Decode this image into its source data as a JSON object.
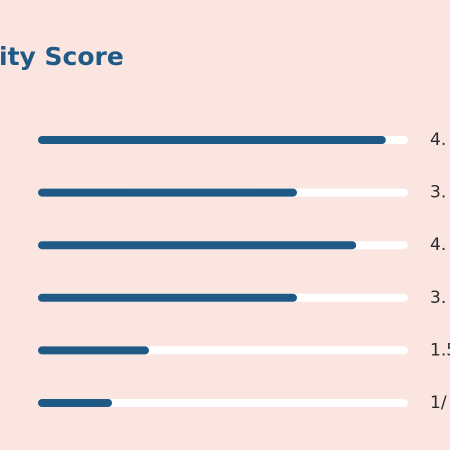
{
  "title": "ity Score",
  "xlim": [
    0,
    100
  ],
  "rows": [
    {
      "label": "4.",
      "value": 94
    },
    {
      "label": "3.",
      "value": 70
    },
    {
      "label": "4.",
      "value": 86
    },
    {
      "label": "3.",
      "value": 70
    },
    {
      "label": "1.5",
      "value": 30
    },
    {
      "label": "1/",
      "value": 20
    }
  ]
}
